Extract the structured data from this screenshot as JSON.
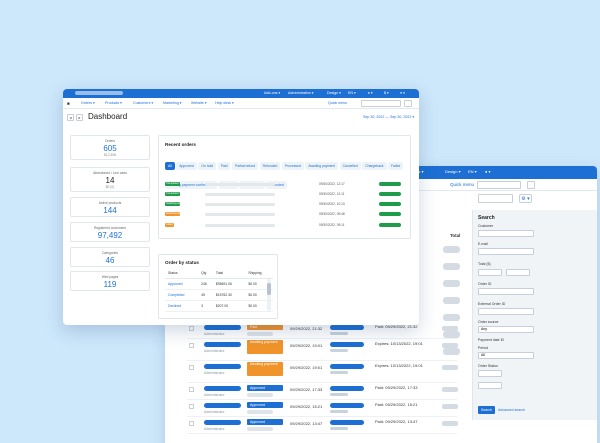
{
  "colors": {
    "accent": "#1d6fd3",
    "green": "#1e9b4b",
    "orange": "#f0932b",
    "background": "#cde7fb"
  },
  "topbar": {
    "items": [
      "Add-ons ▾",
      "Administration ▾",
      "Design ▾",
      "EN ▾",
      "♦ ▾",
      "$ ▾",
      "● ▾"
    ]
  },
  "nav": {
    "home_icon": "■",
    "items": [
      "Orders ▾",
      "Products ▾",
      "Customers ▾",
      "Marketing ▾",
      "Website ▾",
      "Help desk ▾"
    ],
    "quick_menu": "Quick menu"
  },
  "dashboard": {
    "title": "Dashboard",
    "period": "Sep 30, 2022 — Sep 30, 2022 ▾",
    "stats": [
      {
        "label": "Orders",
        "value": "605",
        "sub": "$12,408"
      },
      {
        "label": "Abandoned / Live carts",
        "value": "14",
        "sub": "$0 (0)"
      },
      {
        "label": "Active products",
        "value": "144",
        "sub": ""
      },
      {
        "label": "Registered customers",
        "value": "97,492",
        "sub": ""
      },
      {
        "label": "Categories",
        "value": "46",
        "sub": ""
      },
      {
        "label": "Web pages",
        "value": "119",
        "sub": ""
      }
    ]
  },
  "recent_orders": {
    "title": "Recent orders",
    "tabs": [
      "All",
      "Approved",
      "On hold",
      "Paid",
      "Partial refund",
      "Refunded",
      "Processed",
      "Awaiting payment",
      "Cancelled",
      "Chargeback",
      "Failed",
      "Awaiting payment confirmation",
      "Declined",
      "Backordered",
      "Refunded"
    ],
    "rows": [
      {
        "status": "Completed",
        "status_color": "#1e9b4b",
        "date": "09/30/2022, 12:17"
      },
      {
        "status": "Completed",
        "status_color": "#1e9b4b",
        "date": "09/30/2022, 12:11"
      },
      {
        "status": "Awaiting payment",
        "status_color": "#1e9b4b",
        "date": "09/30/2022, 10:13"
      },
      {
        "status": "Awaiting payment",
        "status_color": "#f0932b",
        "date": "09/30/2022, 09:48"
      },
      {
        "status": "Failed",
        "status_color": "#f0932b",
        "date": "09/30/2022, 09:11"
      }
    ]
  },
  "order_by_status": {
    "title": "Order by status",
    "headers": [
      "Status",
      "Qty",
      "Total",
      "Shipping"
    ],
    "rows": [
      {
        "status": "Approved",
        "qty": "246",
        "total": "$95691.06",
        "shipping": "$0.00"
      },
      {
        "status": "Completed",
        "qty": "45",
        "total": "$15762.30",
        "shipping": "$0.00"
      },
      {
        "status": "Declined",
        "qty": "3",
        "total": "$207.00",
        "shipping": "$0.00"
      }
    ]
  },
  "orders_window": {
    "top_menu": [
      "Customers ▾",
      "Design ▾",
      "EN ▾",
      "● ▾"
    ],
    "quick_menu": "Quick menu",
    "gear": "⚙ ▾",
    "total_header": "Total",
    "customer_sub": "Administrator",
    "rows": [
      {
        "badge": "Paid",
        "badge_color": "#f0932b",
        "date": "09/29/2022, 21:32",
        "payment": "Paid: 09/29/2022, 21:32"
      },
      {
        "badge": "Awaiting payment",
        "badge_color": "#f0932b",
        "date": "09/29/2022, 19:01",
        "payment": "Expires: 10/13/2022, 19:01"
      },
      {
        "badge": "Awaiting payment",
        "badge_color": "#f0932b",
        "date": "09/29/2022, 19:01",
        "payment": "Expires: 10/13/2022, 19:01"
      },
      {
        "badge": "Approved",
        "badge_color": "#1d6fd3",
        "date": "09/29/2022, 17:33",
        "payment": "Paid: 09/29/2022, 17:33"
      },
      {
        "badge": "Approved",
        "badge_color": "#1d6fd3",
        "date": "09/29/2022, 15:21",
        "payment": "Paid: 09/29/2022, 15:21"
      },
      {
        "badge": "Approved",
        "badge_color": "#1d6fd3",
        "date": "09/29/2022, 13:47",
        "payment": "Paid: 09/29/2022, 13:47"
      }
    ]
  },
  "search_panel": {
    "title": "Search",
    "labels": [
      "Customer",
      "E-mail",
      "Total ($)",
      "Order ID",
      "External Order ID",
      "Order source",
      "Payment date ID",
      "Period",
      "Order Status"
    ],
    "source_value": "Any",
    "period_value": "All",
    "search_button": "Search",
    "advanced_link": "Advanced search"
  }
}
